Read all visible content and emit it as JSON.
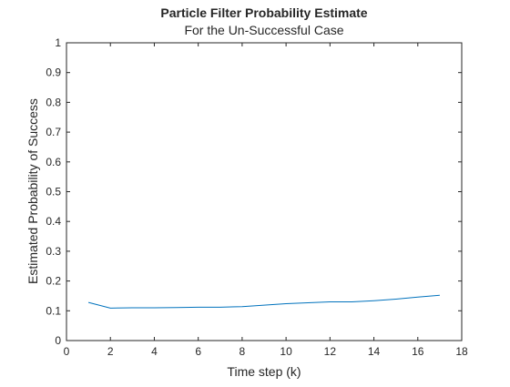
{
  "chart_data": {
    "type": "line",
    "title": "Particle Filter Probability Estimate",
    "subtitle": "For the Un-Successful Case",
    "xlabel": "Time step (k)",
    "ylabel": "Estimated Probability of Success",
    "xlim": [
      0,
      18
    ],
    "ylim": [
      0,
      1
    ],
    "xticks": [
      "0",
      "2",
      "4",
      "6",
      "8",
      "10",
      "12",
      "14",
      "16",
      "18"
    ],
    "yticks": [
      "0",
      "0.1",
      "0.2",
      "0.3",
      "0.4",
      "0.5",
      "0.6",
      "0.7",
      "0.8",
      "0.9",
      "1"
    ],
    "grid": false,
    "series": [
      {
        "color": "#0072BD",
        "x": [
          1,
          2,
          3,
          4,
          5,
          6,
          7,
          8,
          9,
          10,
          11,
          12,
          13,
          14,
          15,
          16,
          17
        ],
        "y": [
          0.128,
          0.109,
          0.11,
          0.11,
          0.111,
          0.112,
          0.112,
          0.114,
          0.119,
          0.124,
          0.127,
          0.13,
          0.13,
          0.134,
          0.139,
          0.146,
          0.152
        ]
      }
    ]
  }
}
